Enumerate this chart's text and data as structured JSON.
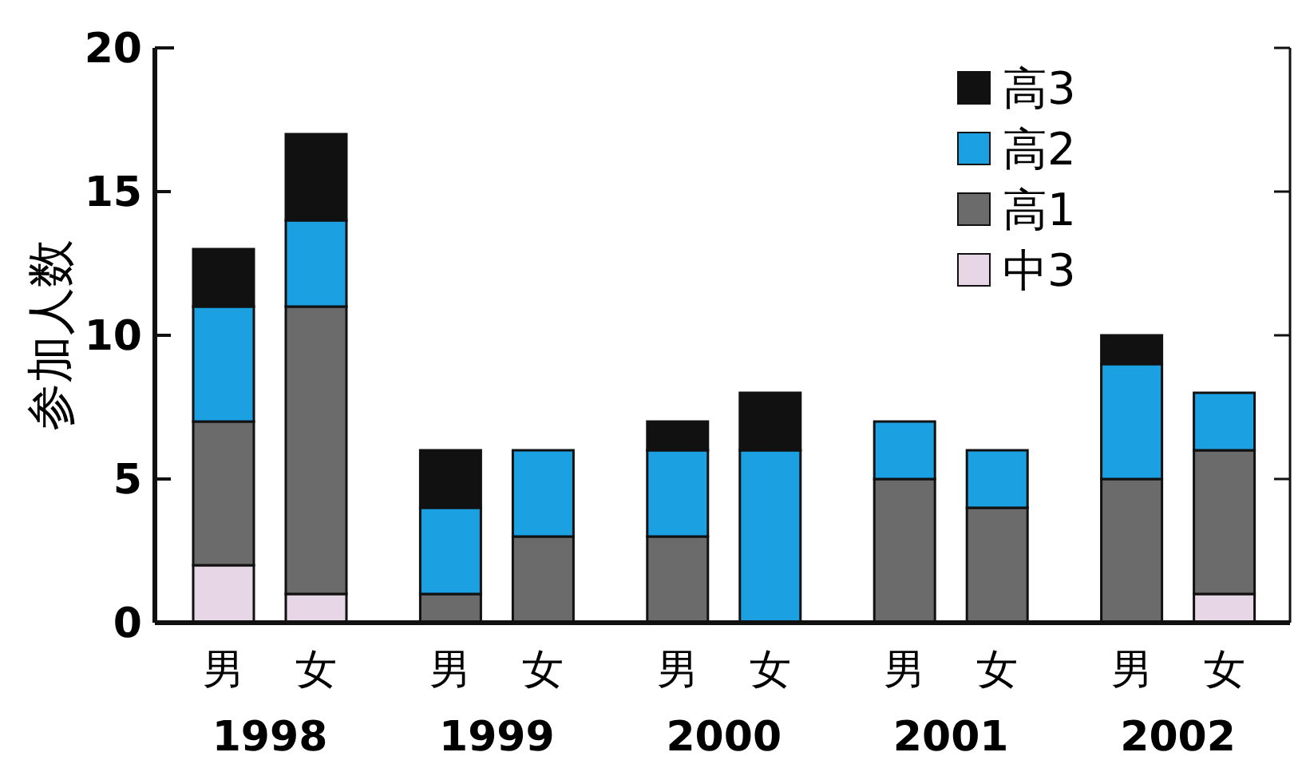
{
  "chart_data": {
    "type": "bar",
    "stacked": true,
    "ylabel": "参加人数",
    "categories": [
      "男",
      "女",
      "男",
      "女",
      "男",
      "女",
      "男",
      "女",
      "男",
      "女"
    ],
    "annotations": [
      "1998",
      "1999",
      "2000",
      "2001",
      "2002"
    ],
    "series": [
      {
        "name": "中3",
        "color": "#e6d6e6",
        "values": [
          2,
          1,
          0,
          0,
          0,
          0,
          0,
          0,
          0,
          1
        ]
      },
      {
        "name": "高1",
        "color": "#6b6b6b",
        "values": [
          5,
          10,
          1,
          3,
          3,
          0,
          5,
          4,
          5,
          5
        ]
      },
      {
        "name": "高2",
        "color": "#1ba0e2",
        "values": [
          4,
          3,
          3,
          3,
          3,
          6,
          2,
          2,
          4,
          2
        ]
      },
      {
        "name": "高3",
        "color": "#111111",
        "values": [
          2,
          3,
          2,
          0,
          1,
          2,
          0,
          0,
          1,
          0
        ]
      }
    ],
    "ylim": [
      0,
      20
    ],
    "yticks": [
      0,
      5,
      10,
      15,
      20
    ],
    "legend": "top right"
  }
}
